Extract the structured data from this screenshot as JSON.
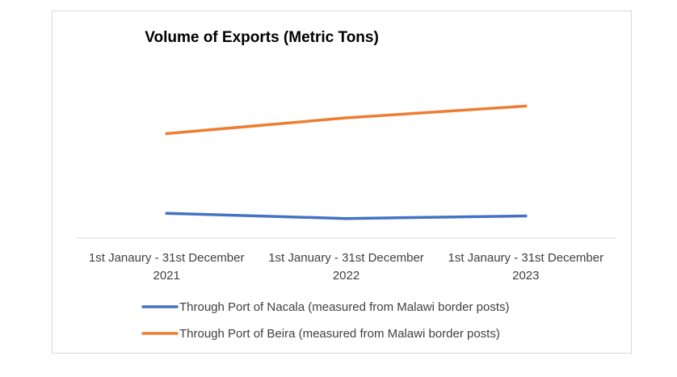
{
  "chart_data": {
    "type": "line",
    "title": "Volume of Exports (Metric Tons)",
    "xlabel": "",
    "ylabel": "",
    "categories": [
      [
        "1st Janaury - 31st December",
        "2021"
      ],
      [
        "1st January - 31st December",
        "2022"
      ],
      [
        "1st Janaury - 31st December",
        "2023"
      ]
    ],
    "series": [
      {
        "name": "Through Port of Nacala (measured from Malawi border posts)",
        "color": "#4472c4",
        "values": [
          19,
          15,
          17
        ]
      },
      {
        "name": "Through Port of Beira (measured from Malawi border posts)",
        "color": "#ed7d31",
        "values": [
          80,
          92,
          101
        ]
      }
    ],
    "ylim": [
      0,
      155
    ],
    "y_axis_visible": false,
    "grid": false,
    "legend": "bottom"
  }
}
